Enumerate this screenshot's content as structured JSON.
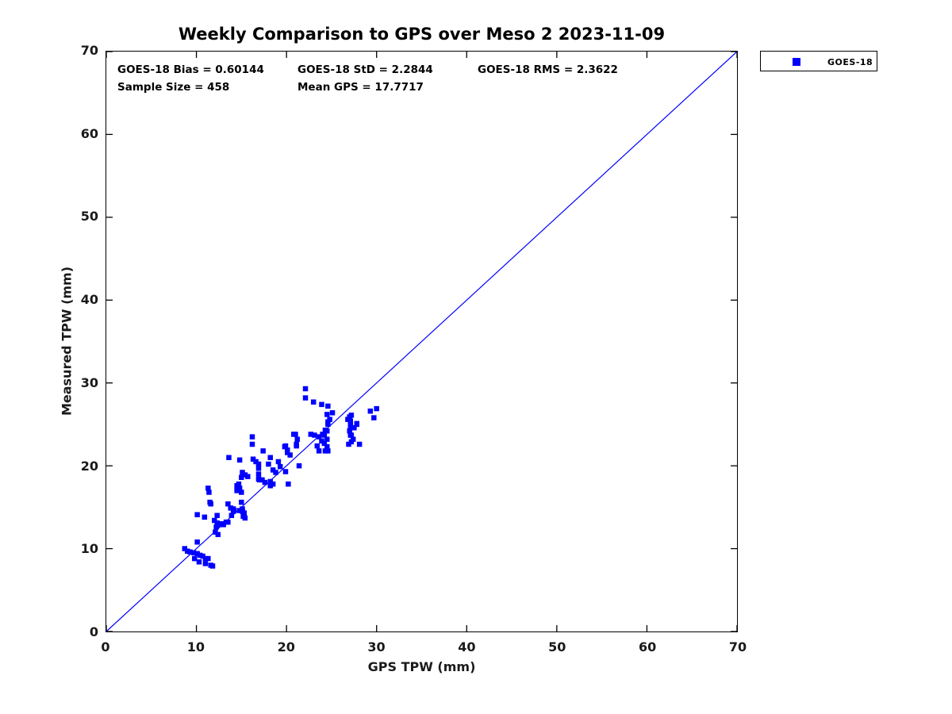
{
  "title": "Weekly Comparison to GPS over Meso 2 2023-11-09",
  "annotations": {
    "bias": "GOES-18 Bias = 0.60144",
    "std": "GOES-18 StD = 2.2844",
    "rms": "GOES-18 RMS = 2.3622",
    "sample_size": "Sample Size = 458",
    "mean_gps": "Mean GPS = 17.7717"
  },
  "legend": {
    "label": "GOES-18",
    "marker_color": "#0000ff"
  },
  "colors": {
    "marker": "#0000ff",
    "reference_line": "#0000ff",
    "axis": "#000000",
    "tick_text": "#1a1a1a"
  },
  "chart_data": {
    "type": "scatter",
    "title": "Weekly Comparison to GPS over Meso 2 2023-11-09",
    "xlabel": "GPS TPW (mm)",
    "ylabel": "Measured TPW (mm)",
    "xlim": [
      0,
      70
    ],
    "ylim": [
      0,
      70
    ],
    "xticks": [
      0,
      10,
      20,
      30,
      40,
      50,
      60,
      70
    ],
    "yticks": [
      0,
      10,
      20,
      30,
      40,
      50,
      60,
      70
    ],
    "grid": false,
    "legend_position": "top-right-outside",
    "reference_line": {
      "from": [
        0,
        0
      ],
      "to": [
        70,
        70
      ],
      "color": "#0000ff"
    },
    "series": [
      {
        "name": "GOES-18",
        "marker": "square",
        "color": "#0000ff",
        "points": [
          [
            8.7,
            10.0
          ],
          [
            9.0,
            9.7
          ],
          [
            9.3,
            9.6
          ],
          [
            9.7,
            9.5
          ],
          [
            9.8,
            8.8
          ],
          [
            10.1,
            10.8
          ],
          [
            10.1,
            9.4
          ],
          [
            10.4,
            9.2
          ],
          [
            10.3,
            8.4
          ],
          [
            10.7,
            9.1
          ],
          [
            11.0,
            8.8
          ],
          [
            11.0,
            8.2
          ],
          [
            11.3,
            8.8
          ],
          [
            11.6,
            8.0
          ],
          [
            11.8,
            7.9
          ],
          [
            12.1,
            12.0
          ],
          [
            12.4,
            11.7
          ],
          [
            10.1,
            14.1
          ],
          [
            10.9,
            13.8
          ],
          [
            11.5,
            15.6
          ],
          [
            11.6,
            15.4
          ],
          [
            12.0,
            13.4
          ],
          [
            12.2,
            12.6
          ],
          [
            12.3,
            13.1
          ],
          [
            12.3,
            14.0
          ],
          [
            12.5,
            12.9
          ],
          [
            12.8,
            13.0
          ],
          [
            13.0,
            12.9
          ],
          [
            13.3,
            13.2
          ],
          [
            13.5,
            13.2
          ],
          [
            13.5,
            15.4
          ],
          [
            13.8,
            14.9
          ],
          [
            13.9,
            14.0
          ],
          [
            14.1,
            14.5
          ],
          [
            14.1,
            14.8
          ],
          [
            14.2,
            14.6
          ],
          [
            14.8,
            14.6
          ],
          [
            15.1,
            14.5
          ],
          [
            15.1,
            14.8
          ],
          [
            15.2,
            13.9
          ],
          [
            15.3,
            14.3
          ],
          [
            15.4,
            13.7
          ],
          [
            11.3,
            17.3
          ],
          [
            11.4,
            16.8
          ],
          [
            13.6,
            21.0
          ],
          [
            14.8,
            20.7
          ],
          [
            14.5,
            17.6
          ],
          [
            14.5,
            17.0
          ],
          [
            14.7,
            17.8
          ],
          [
            14.8,
            17.3
          ],
          [
            15.0,
            16.8
          ],
          [
            15.0,
            15.6
          ],
          [
            15.0,
            18.6
          ],
          [
            15.1,
            19.2
          ],
          [
            15.4,
            18.9
          ],
          [
            15.7,
            18.7
          ],
          [
            16.2,
            23.5
          ],
          [
            16.2,
            22.6
          ],
          [
            16.3,
            20.8
          ],
          [
            16.6,
            20.5
          ],
          [
            16.9,
            20.2
          ],
          [
            16.9,
            19.7
          ],
          [
            16.9,
            19.0
          ],
          [
            16.9,
            18.4
          ],
          [
            17.0,
            18.3
          ],
          [
            17.3,
            18.3
          ],
          [
            17.4,
            21.8
          ],
          [
            17.6,
            18.0
          ],
          [
            18.0,
            20.2
          ],
          [
            18.2,
            18.1
          ],
          [
            18.2,
            17.6
          ],
          [
            18.2,
            21.0
          ],
          [
            18.5,
            17.8
          ],
          [
            18.5,
            19.5
          ],
          [
            18.8,
            19.2
          ],
          [
            19.1,
            20.5
          ],
          [
            19.3,
            19.9
          ],
          [
            19.8,
            22.3
          ],
          [
            19.9,
            19.3
          ],
          [
            19.9,
            22.4
          ],
          [
            20.1,
            21.6
          ],
          [
            20.1,
            21.9
          ],
          [
            20.2,
            17.8
          ],
          [
            20.4,
            21.3
          ],
          [
            20.8,
            23.8
          ],
          [
            21.0,
            23.8
          ],
          [
            21.1,
            22.4
          ],
          [
            21.1,
            22.6
          ],
          [
            21.2,
            23.2
          ],
          [
            21.4,
            20.0
          ],
          [
            22.1,
            29.3
          ],
          [
            22.1,
            28.2
          ],
          [
            22.7,
            23.8
          ],
          [
            23.0,
            27.7
          ],
          [
            23.1,
            23.7
          ],
          [
            23.4,
            22.4
          ],
          [
            23.6,
            23.5
          ],
          [
            23.6,
            21.8
          ],
          [
            23.9,
            27.4
          ],
          [
            23.9,
            23.0
          ],
          [
            24.0,
            23.8
          ],
          [
            24.2,
            22.7
          ],
          [
            24.2,
            23.7
          ],
          [
            24.3,
            21.8
          ],
          [
            24.3,
            24.3
          ],
          [
            24.5,
            22.3
          ],
          [
            24.5,
            23.2
          ],
          [
            24.5,
            24.2
          ],
          [
            24.5,
            26.2
          ],
          [
            24.6,
            21.8
          ],
          [
            24.6,
            25.0
          ],
          [
            24.6,
            25.3
          ],
          [
            24.6,
            27.2
          ],
          [
            24.8,
            25.6
          ],
          [
            25.1,
            26.4
          ],
          [
            26.8,
            25.6
          ],
          [
            26.9,
            22.6
          ],
          [
            27.0,
            24.2
          ],
          [
            27.0,
            25.9
          ],
          [
            27.1,
            23.7
          ],
          [
            27.1,
            24.8
          ],
          [
            27.1,
            25.4
          ],
          [
            27.2,
            22.9
          ],
          [
            27.2,
            23.7
          ],
          [
            27.2,
            26.1
          ],
          [
            27.4,
            23.2
          ],
          [
            27.4,
            24.6
          ],
          [
            27.5,
            24.6
          ],
          [
            27.8,
            25.0
          ],
          [
            27.8,
            25.1
          ],
          [
            28.1,
            22.6
          ],
          [
            29.3,
            26.6
          ],
          [
            29.7,
            25.8
          ],
          [
            30.0,
            26.9
          ]
        ]
      }
    ]
  }
}
